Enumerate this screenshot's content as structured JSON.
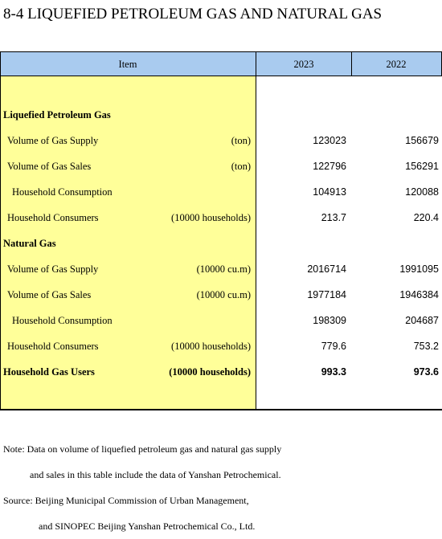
{
  "header": {
    "title": "8-4  LIQUEFIED PETROLEUM GAS AND NATURAL GAS"
  },
  "table": {
    "columns": [
      "Item",
      "2023",
      "2022"
    ],
    "rows": [
      {
        "label": "Liquefied Petroleum Gas"
      },
      {
        "label": "Volume of Gas Supply",
        "unit": "(ton)",
        "values": [
          123023,
          156679
        ]
      },
      {
        "label": "Volume of Gas Sales",
        "unit": "(ton)",
        "values": [
          122796,
          156291
        ]
      },
      {
        "label": "Household Consumption",
        "values": [
          104913,
          120088
        ]
      },
      {
        "label": "Household Consumers",
        "unit": "(10000 households)",
        "values": [
          213.7,
          220.4
        ]
      },
      {
        "label": "Natural Gas"
      },
      {
        "label": "Volume of Gas Supply",
        "unit": "(10000 cu.m)",
        "values": [
          2016714,
          1991095
        ]
      },
      {
        "label": "Volume of Gas Sales",
        "unit": "(10000 cu.m)",
        "values": [
          1977184,
          1946384
        ]
      },
      {
        "label": "Household Consumption",
        "values": [
          198309,
          204687
        ]
      },
      {
        "label": "Household Consumers",
        "unit": "(10000 households)",
        "values": [
          779.6,
          753.2
        ]
      },
      {
        "label": "Household Gas Users",
        "unit": "(10000 households)",
        "values": [
          993.3,
          973.6
        ]
      }
    ]
  },
  "notes": [
    "Note: Data on volume of liquefied petroleum gas and natural gas supply",
    "and sales in this table include the data of Yanshan Petrochemical.",
    "Source: Beijing Municipal Commission of Urban Management,",
    "and SINOPEC Beijing Yanshan Petrochemical Co., Ltd."
  ]
}
